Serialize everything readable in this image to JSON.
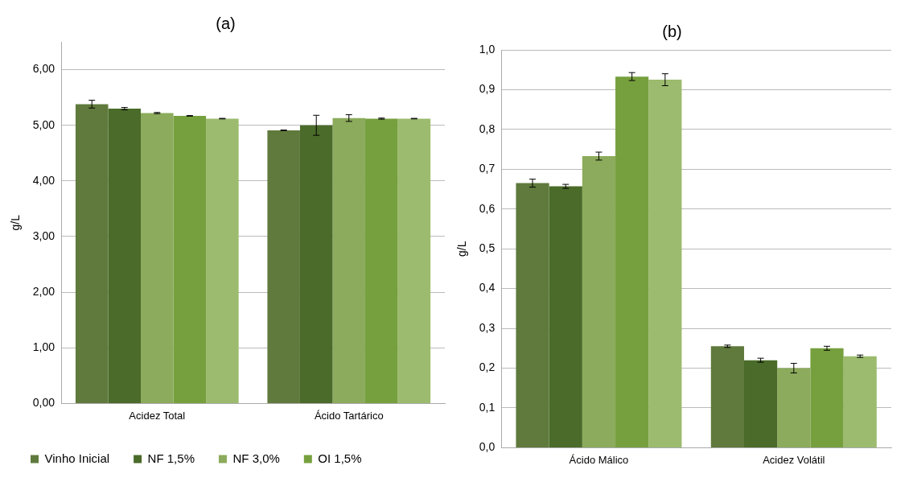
{
  "chart_data": [
    {
      "type": "bar",
      "title": "(a)",
      "ylabel": "g/L",
      "categories": [
        "Acidez Total",
        "Ácido Tartárico"
      ],
      "ylim": [
        0,
        6.5
      ],
      "yticks": [
        {
          "value": 0,
          "label": "0,00"
        },
        {
          "value": 1,
          "label": "1,00"
        },
        {
          "value": 2,
          "label": "2,00"
        },
        {
          "value": 3,
          "label": "3,00"
        },
        {
          "value": 4,
          "label": "4,00"
        },
        {
          "value": 5,
          "label": "5,00"
        },
        {
          "value": 6,
          "label": "6,00"
        }
      ],
      "grid": "y",
      "legend": "bottom",
      "series": [
        {
          "name": "Vinho Inicial",
          "color": "#5f7a3c",
          "values": [
            5.38,
            4.91
          ],
          "errors": [
            0.07,
            0.005
          ]
        },
        {
          "name": "NF 1,5%",
          "color": "#4a6b29",
          "values": [
            5.3,
            5.0
          ],
          "errors": [
            0.02,
            0.18
          ]
        },
        {
          "name": "NF 3,0%",
          "color": "#8cab5c",
          "values": [
            5.22,
            5.13
          ],
          "errors": [
            0.01,
            0.06
          ]
        },
        {
          "name": "OI 1,5%",
          "color": "#76a03e",
          "values": [
            5.17,
            5.12
          ],
          "errors": [
            0.005,
            0.01
          ]
        },
        {
          "color": "#9cbb6e",
          "values": [
            5.12,
            5.12
          ],
          "errors": [
            0.005,
            0.005
          ]
        }
      ]
    },
    {
      "type": "bar",
      "title": "(b)",
      "ylabel": "g/L",
      "categories": [
        "Ácido Málico",
        "Acidez Volátil"
      ],
      "ylim": [
        0,
        1
      ],
      "yticks": [
        {
          "value": 0,
          "label": "0,0"
        },
        {
          "value": 0.1,
          "label": "0,1"
        },
        {
          "value": 0.2,
          "label": "0,2"
        },
        {
          "value": 0.3,
          "label": "0,3"
        },
        {
          "value": 0.4,
          "label": "0,4"
        },
        {
          "value": 0.5,
          "label": "0,5"
        },
        {
          "value": 0.6,
          "label": "0,6"
        },
        {
          "value": 0.7,
          "label": "0,7"
        },
        {
          "value": 0.8,
          "label": "0,8"
        },
        {
          "value": 0.9,
          "label": "0,9"
        },
        {
          "value": 1,
          "label": "1,0"
        }
      ],
      "grid": "y",
      "series": [
        {
          "color": "#5f7a3c",
          "values": [
            0.665,
            0.255
          ],
          "errors": [
            0.01,
            0.003
          ]
        },
        {
          "color": "#4a6b29",
          "values": [
            0.657,
            0.22
          ],
          "errors": [
            0.005,
            0.005
          ]
        },
        {
          "color": "#8cab5c",
          "values": [
            0.733,
            0.2
          ],
          "errors": [
            0.01,
            0.012
          ]
        },
        {
          "color": "#76a03e",
          "values": [
            0.933,
            0.25
          ],
          "errors": [
            0.01,
            0.005
          ]
        },
        {
          "color": "#9cbb6e",
          "values": [
            0.925,
            0.23
          ],
          "errors": [
            0.015,
            0.003
          ]
        }
      ]
    }
  ]
}
